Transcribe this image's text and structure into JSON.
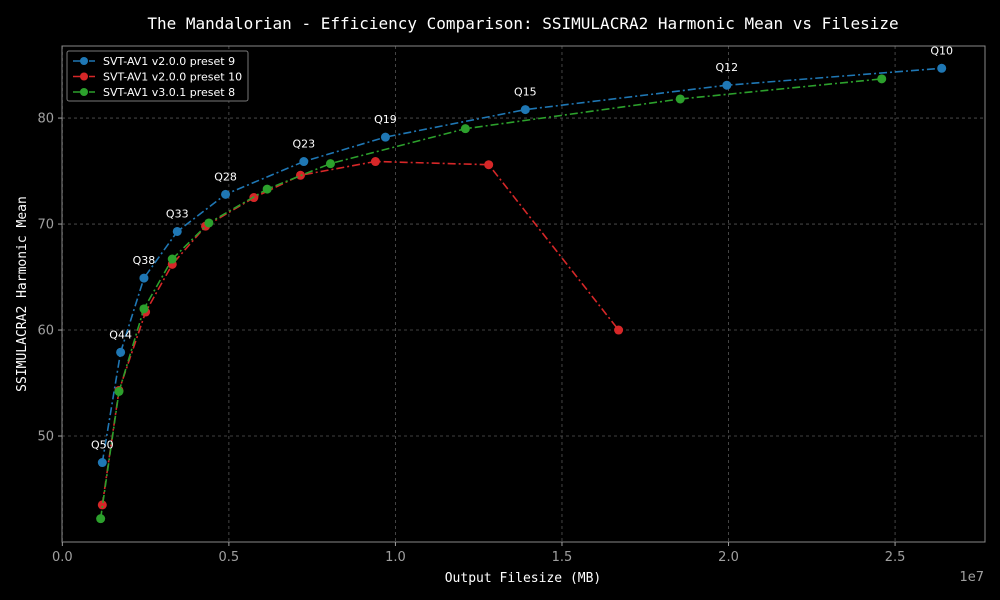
{
  "chart_data": {
    "type": "line",
    "title": "The Mandalorian - Efficiency Comparison: SSIMULACRA2 Harmonic Mean vs Filesize",
    "xlabel": "Output Filesize (MB)",
    "ylabel": "SSIMULACRA2 Harmonic Mean",
    "x_offset_label": "1e7",
    "xlim": [
      -10000,
      27700000
    ],
    "ylim": [
      40,
      86.8
    ],
    "x_ticks": [
      {
        "value": 0,
        "label": "0.0"
      },
      {
        "value": 5000000,
        "label": "0.5"
      },
      {
        "value": 10000000,
        "label": "1.0"
      },
      {
        "value": 15000000,
        "label": "1.5"
      },
      {
        "value": 20000000,
        "label": "2.0"
      },
      {
        "value": 25000000,
        "label": "2.5"
      }
    ],
    "y_ticks": [
      {
        "value": 50,
        "label": "50"
      },
      {
        "value": 60,
        "label": "60"
      },
      {
        "value": 70,
        "label": "70"
      },
      {
        "value": 80,
        "label": "80"
      }
    ],
    "grid": true,
    "legend_position": "top-left",
    "series": [
      {
        "name": "SVT-AV1 v2.0.0 preset 9",
        "color": "#1f77b4",
        "x": [
          1200000,
          1750000,
          2450000,
          3450000,
          4900000,
          7250000,
          9700000,
          13900000,
          19950000,
          26400000
        ],
        "y": [
          47.5,
          57.9,
          64.9,
          69.3,
          72.8,
          75.9,
          78.2,
          80.8,
          83.1,
          84.7
        ]
      },
      {
        "name": "SVT-AV1 v2.0.0 preset 10",
        "color": "#d62728",
        "x": [
          1200000,
          1700000,
          2500000,
          3300000,
          4300000,
          5750000,
          7150000,
          9400000,
          12800000,
          16700000
        ],
        "y": [
          43.5,
          54.3,
          61.7,
          66.2,
          69.8,
          72.5,
          74.6,
          75.9,
          75.6,
          60.0
        ]
      },
      {
        "name": "SVT-AV1 v3.0.1 preset 8",
        "color": "#2ca02c",
        "x": [
          1150000,
          1700000,
          2450000,
          3300000,
          4400000,
          6150000,
          8050000,
          12100000,
          18550000,
          24600000
        ],
        "y": [
          42.2,
          54.2,
          62.0,
          66.7,
          70.1,
          73.3,
          75.7,
          79.0,
          81.8,
          83.7
        ]
      }
    ],
    "annotations": [
      {
        "text": "Q50",
        "x": 1200000,
        "y": 47.5
      },
      {
        "text": "Q44",
        "x": 1750000,
        "y": 57.9
      },
      {
        "text": "Q38",
        "x": 2450000,
        "y": 64.9
      },
      {
        "text": "Q33",
        "x": 3450000,
        "y": 69.3
      },
      {
        "text": "Q28",
        "x": 4900000,
        "y": 72.8
      },
      {
        "text": "Q23",
        "x": 7250000,
        "y": 75.9
      },
      {
        "text": "Q19",
        "x": 9700000,
        "y": 78.2
      },
      {
        "text": "Q15",
        "x": 13900000,
        "y": 80.8
      },
      {
        "text": "Q12",
        "x": 19950000,
        "y": 83.1
      },
      {
        "text": "Q10",
        "x": 26400000,
        "y": 84.7
      }
    ]
  },
  "style": {
    "background": "#000000",
    "axes_edge": "#888888",
    "grid_color": "#555555",
    "tick_color": "#a0a0a0",
    "text_color": "#ffffff",
    "legend_bg": "#000000",
    "legend_edge": "#777777"
  }
}
